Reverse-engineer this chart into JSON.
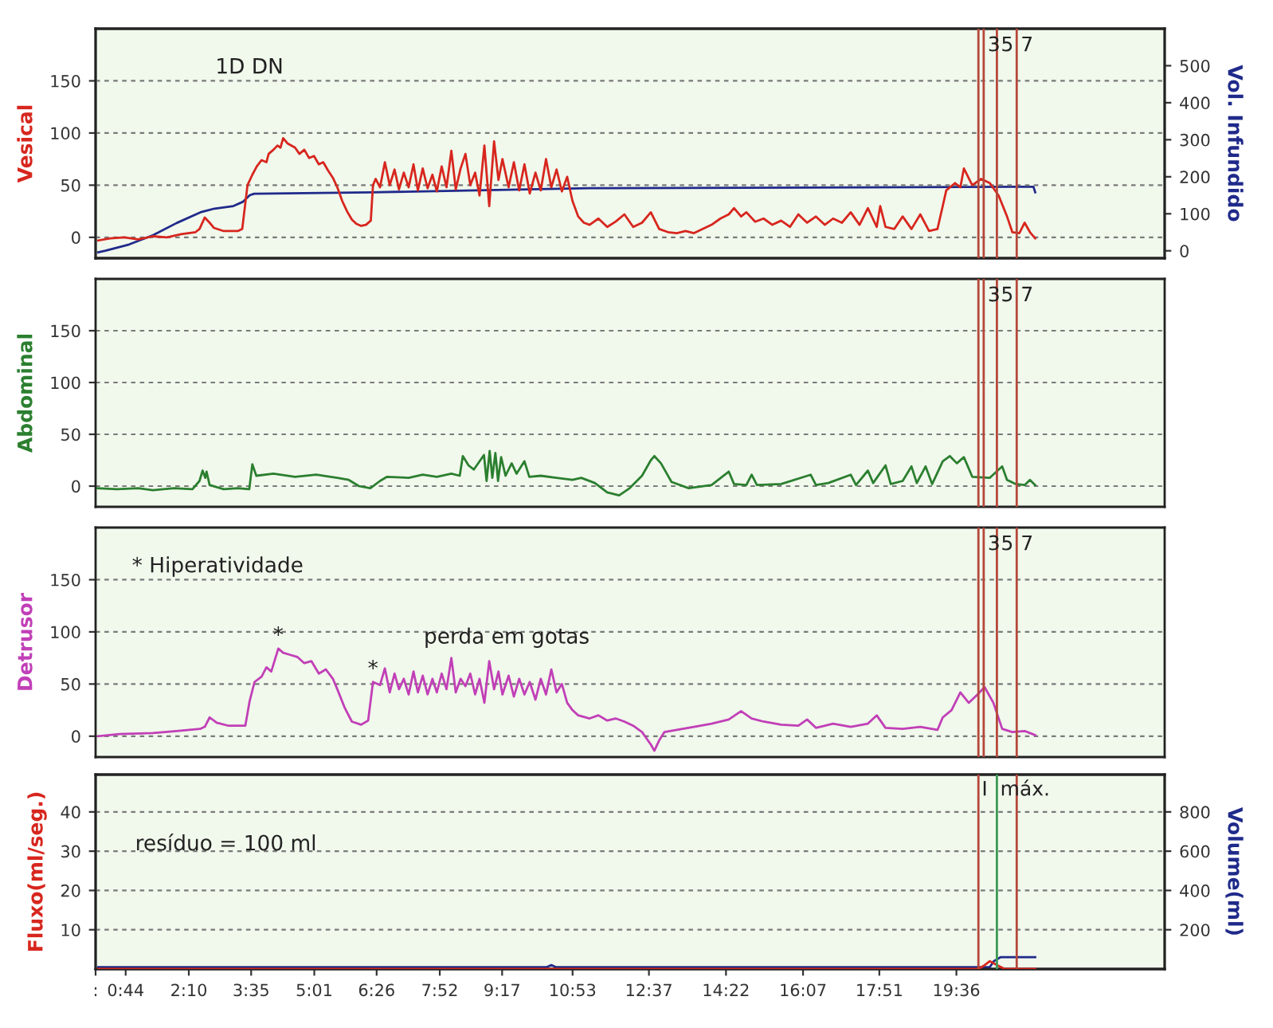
{
  "chart_data": [
    {
      "type": "line",
      "ylabel": "Vesical",
      "y2label": "Vol. Infundido",
      "xlim": [
        0.05,
        24.33
      ],
      "ylim": [
        -20,
        200
      ],
      "yticks": [
        0,
        50,
        100,
        150
      ],
      "y2lim": [
        -20,
        600
      ],
      "y2ticks": [
        0,
        100,
        200,
        300,
        400,
        500
      ],
      "tick_labels": "y",
      "grid": "y",
      "series": [
        {
          "color": "#d7261e",
          "x": [
            0.11,
            0.38,
            0.7,
            1.02,
            1.35,
            1.67,
            1.99,
            2.32,
            2.41,
            2.53,
            2.64,
            2.74,
            2.96,
            3.28,
            3.38,
            3.5,
            3.61,
            3.71,
            3.82,
            3.93,
            3.98,
            4.09,
            4.18,
            4.25,
            4.31,
            4.41,
            4.58,
            4.68,
            4.79,
            4.9,
            5.01,
            5.12,
            5.22,
            5.33,
            5.44,
            5.54,
            5.65,
            5.76,
            5.87,
            5.97,
            6.08,
            6.19,
            6.3,
            6.35,
            6.41,
            6.51,
            6.62,
            6.73,
            6.84,
            6.94,
            7.05,
            7.16,
            7.27,
            7.37,
            7.48,
            7.59,
            7.7,
            7.8,
            7.91,
            8.02,
            8.13,
            8.23,
            8.34,
            8.45,
            8.56,
            8.67,
            8.77,
            8.88,
            8.99,
            9.1,
            9.2,
            9.29,
            9.43,
            9.55,
            9.67,
            9.79,
            9.91,
            10.04,
            10.16,
            10.28,
            10.4,
            10.52,
            10.64,
            10.76,
            10.88,
            11.01,
            11.14,
            11.27,
            11.47,
            11.67,
            11.86,
            12.06,
            12.26,
            12.46,
            12.66,
            12.85,
            13.05,
            13.25,
            13.45,
            13.64,
            13.84,
            14.04,
            14.24,
            14.43,
            14.55,
            14.71,
            14.83,
            15.03,
            15.22,
            15.42,
            15.62,
            15.82,
            16.01,
            16.21,
            16.41,
            16.61,
            16.8,
            17.0,
            17.2,
            17.4,
            17.59,
            17.79,
            17.87,
            17.99,
            18.19,
            18.38,
            18.58,
            18.78,
            18.98,
            19.17,
            19.29,
            19.37,
            19.57,
            19.69,
            19.77,
            19.96,
            20.16,
            20.36,
            20.56,
            20.75,
            20.87,
            21.03,
            21.15,
            21.27,
            21.39
          ],
          "values": [
            -3,
            -1,
            0,
            -2,
            1,
            0,
            3,
            5,
            8,
            19,
            14,
            9,
            6,
            6,
            8,
            50,
            60,
            68,
            74,
            72,
            80,
            84,
            88,
            86,
            95,
            90,
            86,
            80,
            84,
            76,
            78,
            70,
            72,
            64,
            57,
            48,
            35,
            25,
            17,
            13,
            11,
            12,
            16,
            50,
            56,
            48,
            72,
            50,
            65,
            46,
            62,
            48,
            70,
            45,
            66,
            47,
            60,
            44,
            68,
            48,
            83,
            46,
            66,
            80,
            50,
            62,
            40,
            88,
            30,
            92,
            55,
            75,
            48,
            72,
            45,
            70,
            42,
            62,
            45,
            75,
            48,
            65,
            44,
            58,
            35,
            20,
            14,
            12,
            18,
            10,
            15,
            22,
            10,
            14,
            24,
            8,
            5,
            4,
            6,
            4,
            8,
            12,
            18,
            22,
            28,
            20,
            24,
            15,
            18,
            12,
            16,
            10,
            22,
            14,
            20,
            12,
            18,
            14,
            24,
            12,
            28,
            10,
            30,
            10,
            8,
            20,
            8,
            22,
            6,
            8,
            30,
            45,
            52,
            48,
            66,
            50,
            56,
            52,
            40,
            20,
            5,
            4,
            14,
            5,
            -1
          ]
        },
        {
          "color": "#1f2a8a",
          "axis": "y2",
          "x": [
            0.11,
            0.27,
            0.81,
            1.35,
            1.89,
            2.43,
            2.75,
            3.18,
            3.39,
            3.55,
            3.65,
            6.3,
            11.27,
            21.35,
            21.39
          ],
          "values": [
            -4,
            0,
            17,
            42,
            75,
            104,
            114,
            121,
            132,
            150,
            154,
            158,
            169,
            173,
            158
          ]
        }
      ],
      "ref_lines": [
        {
          "axis": "x",
          "value": 20.1,
          "color": "#b5473a"
        },
        {
          "axis": "x",
          "value": 20.22,
          "color": "#b5473a"
        },
        {
          "axis": "x",
          "value": 20.52,
          "color": "#b5473a"
        },
        {
          "axis": "x",
          "value": 20.97,
          "color": "#b5473a"
        }
      ],
      "annotations": [
        "1D DN",
        {
          "text": "3",
          "x": 20.22,
          "y": 193
        },
        {
          "text": "5",
          "x": 20.52,
          "y": 193
        },
        {
          "text": "7",
          "x": 20.97,
          "y": 193
        }
      ]
    },
    {
      "type": "line",
      "ylabel": "Abdominal",
      "xlim": [
        0.05,
        24.33
      ],
      "ylim": [
        -20,
        200
      ],
      "yticks": [
        0,
        50,
        100,
        150
      ],
      "tick_labels": "y",
      "grid": "y",
      "series": [
        {
          "color": "#2b7f2f",
          "x": [
            0.09,
            0.54,
            1.02,
            1.35,
            1.83,
            2.25,
            2.41,
            2.48,
            2.54,
            2.57,
            2.64,
            2.96,
            3.28,
            3.54,
            3.61,
            3.7,
            4.09,
            4.58,
            5.06,
            5.54,
            5.8,
            6.03,
            6.29,
            6.51,
            6.67,
            7.16,
            7.48,
            7.8,
            8.13,
            8.32,
            8.39,
            8.52,
            8.64,
            8.87,
            8.93,
            9.0,
            9.06,
            9.13,
            9.19,
            9.26,
            9.36,
            9.5,
            9.61,
            9.79,
            9.9,
            10.16,
            10.52,
            10.88,
            11.08,
            11.39,
            11.67,
            11.94,
            12.18,
            12.46,
            12.66,
            12.74,
            12.89,
            13.13,
            13.52,
            14.04,
            14.43,
            14.55,
            14.83,
            14.95,
            15.07,
            15.62,
            16.29,
            16.41,
            16.69,
            17.2,
            17.32,
            17.59,
            17.71,
            17.99,
            18.11,
            18.38,
            18.58,
            18.7,
            18.9,
            19.05,
            19.29,
            19.45,
            19.61,
            19.77,
            19.96,
            20.36,
            20.64,
            20.75,
            20.95,
            21.15,
            21.27,
            21.39
          ],
          "values": [
            -2,
            -3,
            -2,
            -4,
            -2,
            -3,
            5,
            15,
            8,
            14,
            1,
            -3,
            -2,
            -3,
            21,
            10,
            12,
            9,
            11,
            8,
            6,
            0,
            -2,
            5,
            9,
            8,
            11,
            9,
            12,
            10,
            29,
            20,
            16,
            30,
            5,
            34,
            8,
            32,
            5,
            28,
            10,
            22,
            12,
            24,
            9,
            10,
            8,
            6,
            8,
            3,
            -6,
            -9,
            -2,
            10,
            25,
            29,
            22,
            4,
            -2,
            1,
            14,
            2,
            1,
            11,
            1,
            2,
            11,
            1,
            3,
            11,
            1,
            15,
            3,
            20,
            2,
            5,
            19,
            3,
            19,
            2,
            24,
            29,
            22,
            28,
            9,
            8,
            19,
            6,
            2,
            1,
            6,
            1
          ]
        }
      ],
      "ref_lines": [
        {
          "axis": "x",
          "value": 20.1,
          "color": "#b5473a"
        },
        {
          "axis": "x",
          "value": 20.22,
          "color": "#b5473a"
        },
        {
          "axis": "x",
          "value": 20.52,
          "color": "#b5473a"
        },
        {
          "axis": "x",
          "value": 20.97,
          "color": "#b5473a"
        }
      ],
      "annotations": [
        {
          "text": "3",
          "x": 20.22,
          "y": 193
        },
        {
          "text": "5",
          "x": 20.52,
          "y": 193
        },
        {
          "text": "7",
          "x": 20.97,
          "y": 193
        }
      ]
    },
    {
      "type": "line",
      "ylabel": "Detrusor",
      "xlim": [
        0.05,
        24.33
      ],
      "ylim": [
        -20,
        200
      ],
      "yticks": [
        0,
        50,
        100,
        150
      ],
      "tick_labels": "y",
      "grid": "y",
      "series": [
        {
          "color": "#c13fb7",
          "x": [
            0.11,
            0.59,
            1.35,
            1.89,
            2.42,
            2.53,
            2.64,
            2.8,
            3.07,
            3.45,
            3.55,
            3.66,
            3.82,
            3.93,
            4.04,
            4.2,
            4.31,
            4.47,
            4.63,
            4.79,
            4.95,
            5.12,
            5.28,
            5.44,
            5.54,
            5.71,
            5.87,
            6.08,
            6.24,
            6.35,
            6.51,
            6.62,
            6.73,
            6.84,
            6.94,
            7.05,
            7.16,
            7.27,
            7.37,
            7.48,
            7.59,
            7.7,
            7.8,
            7.91,
            8.02,
            8.13,
            8.23,
            8.34,
            8.45,
            8.56,
            8.67,
            8.77,
            8.88,
            8.99,
            9.1,
            9.2,
            9.29,
            9.43,
            9.55,
            9.67,
            9.79,
            9.91,
            10.04,
            10.16,
            10.28,
            10.4,
            10.52,
            10.64,
            10.76,
            10.88,
            11.01,
            11.27,
            11.47,
            11.67,
            11.86,
            12.06,
            12.26,
            12.46,
            12.66,
            12.74,
            12.85,
            12.97,
            13.25,
            13.64,
            14.04,
            14.43,
            14.71,
            14.95,
            15.22,
            15.62,
            16.01,
            16.21,
            16.41,
            16.8,
            17.2,
            17.59,
            17.79,
            17.99,
            18.38,
            18.78,
            19.17,
            19.29,
            19.49,
            19.69,
            19.88,
            20.08,
            20.24,
            20.44,
            20.64,
            20.87,
            21.15,
            21.27,
            21.39
          ],
          "values": [
            0,
            2,
            3,
            5,
            7,
            9,
            18,
            13,
            10,
            10,
            34,
            52,
            57,
            66,
            62,
            84,
            80,
            78,
            76,
            70,
            72,
            60,
            64,
            55,
            45,
            27,
            14,
            11,
            15,
            52,
            49,
            65,
            42,
            60,
            45,
            55,
            40,
            62,
            42,
            58,
            40,
            55,
            42,
            60,
            45,
            75,
            42,
            55,
            48,
            60,
            40,
            55,
            32,
            72,
            45,
            62,
            40,
            58,
            38,
            55,
            40,
            52,
            35,
            55,
            40,
            64,
            42,
            50,
            32,
            25,
            20,
            17,
            20,
            15,
            17,
            14,
            10,
            4,
            -8,
            -14,
            -4,
            4,
            6,
            9,
            12,
            16,
            24,
            17,
            14,
            11,
            10,
            16,
            8,
            12,
            9,
            12,
            20,
            8,
            7,
            9,
            6,
            18,
            25,
            42,
            32,
            40,
            47,
            32,
            7,
            4,
            5,
            3,
            1
          ]
        }
      ],
      "ref_lines": [
        {
          "axis": "x",
          "value": 20.1,
          "color": "#b5473a"
        },
        {
          "axis": "x",
          "value": 20.22,
          "color": "#b5473a"
        },
        {
          "axis": "x",
          "value": 20.52,
          "color": "#b5473a"
        },
        {
          "axis": "x",
          "value": 20.97,
          "color": "#b5473a"
        }
      ],
      "annotations": [
        "* Hiperatividade",
        "perda em gotas",
        {
          "text": "*",
          "x": 4.2,
          "y": 84
        },
        {
          "text": "*",
          "x": 6.35,
          "y": 52
        },
        {
          "text": "3",
          "x": 20.22,
          "y": 193
        },
        {
          "text": "5",
          "x": 20.52,
          "y": 193
        },
        {
          "text": "7",
          "x": 20.97,
          "y": 193
        }
      ]
    },
    {
      "type": "line",
      "ylabel": "Fluxo(ml/seg.)",
      "y2label": "Volume(ml)",
      "xlim": [
        0.05,
        24.33
      ],
      "xticks": [
        {
          "value": 0.05,
          "label": ":"
        },
        {
          "value": 0.733,
          "label": "0:44"
        },
        {
          "value": 2.167,
          "label": "2:10"
        },
        {
          "value": 3.583,
          "label": "3:35"
        },
        {
          "value": 5.017,
          "label": "5:01"
        },
        {
          "value": 6.433,
          "label": "6:26"
        },
        {
          "value": 7.867,
          "label": "7:52"
        },
        {
          "value": 9.283,
          "label": "9:17"
        },
        {
          "value": 10.883,
          "label": "10:53"
        },
        {
          "value": 12.617,
          "label": "12:37"
        },
        {
          "value": 14.367,
          "label": "14:22"
        },
        {
          "value": 16.117,
          "label": "16:07"
        },
        {
          "value": 17.85,
          "label": "17:51"
        },
        {
          "value": 19.6,
          "label": "19:36"
        }
      ],
      "ylim": [
        0,
        49.5
      ],
      "yticks": [
        10,
        20,
        30,
        40
      ],
      "y2lim": [
        0,
        990
      ],
      "y2ticks": [
        200,
        400,
        600,
        800
      ],
      "grid": "y",
      "series": [
        {
          "color": "#d7261e",
          "x": [
            0.11,
            20.1,
            20.24,
            20.36,
            20.52,
            20.7,
            21.39
          ],
          "values": [
            0,
            0,
            1,
            2,
            1,
            0,
            0
          ]
        },
        {
          "color": "#1f2a8a",
          "axis": "y2",
          "x": [
            0.11,
            10.3,
            10.4,
            10.5,
            20.36,
            20.45,
            20.6,
            21.39
          ],
          "values": [
            10,
            10,
            20,
            10,
            10,
            40,
            60,
            60
          ]
        }
      ],
      "ref_lines": [
        {
          "axis": "x",
          "value": 20.1,
          "label": "I",
          "color": "#b5473a"
        },
        {
          "axis": "x",
          "value": 20.52,
          "label": "máx.",
          "color": "#3c9a55"
        },
        {
          "axis": "x",
          "value": 20.97,
          "color": "#b5473a"
        }
      ],
      "annotations": [
        "resíduo = 100 ml"
      ]
    }
  ]
}
